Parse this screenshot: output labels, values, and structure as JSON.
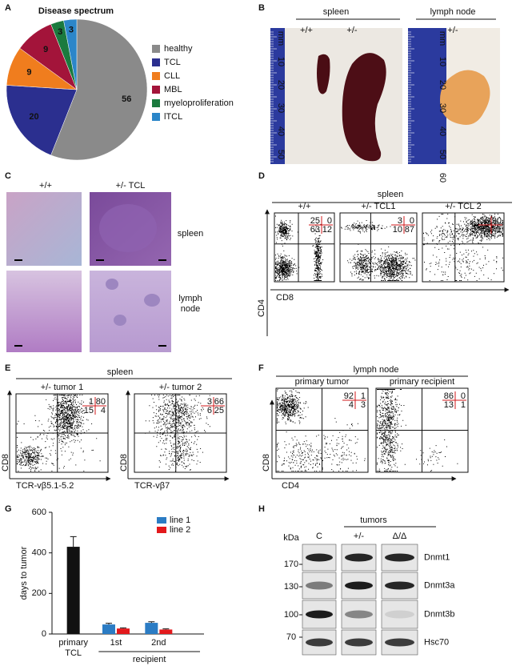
{
  "panel_labels": [
    "A",
    "B",
    "C",
    "D",
    "E",
    "F",
    "G",
    "H"
  ],
  "chart_data": [
    {
      "type": "pie",
      "title": "Disease spectrum",
      "categories": [
        "healthy",
        "TCL",
        "CLL",
        "MBL",
        "myeloproliferation",
        "lTCL"
      ],
      "values": [
        56,
        20,
        9,
        9,
        3,
        3
      ],
      "colors": [
        "#8a8a8a",
        "#2b2f8f",
        "#f07d1e",
        "#a3143a",
        "#1b7a3e",
        "#2b86c9"
      ]
    },
    {
      "type": "bar",
      "ylabel": "days to tumor",
      "categories": [
        "primary TCL",
        "1st",
        "2nd"
      ],
      "group_label": "recipient",
      "series": [
        {
          "color": "#111111",
          "values": [
            430,
            null,
            null
          ],
          "errors": [
            50,
            null,
            null
          ]
        },
        {
          "name": "line 1",
          "color": "#2b7cc4",
          "values": [
            null,
            47,
            55
          ],
          "errors": [
            null,
            6,
            5
          ]
        },
        {
          "name": "line 2",
          "color": "#e3191c",
          "values": [
            null,
            27,
            22
          ],
          "errors": [
            null,
            3,
            3
          ]
        }
      ],
      "ylim": [
        0,
        600
      ],
      "yticks": [
        0,
        200,
        400,
        600
      ]
    }
  ],
  "panel_b": {
    "spleen": {
      "title": "spleen",
      "genotypes": [
        "+/+",
        "+/-"
      ],
      "ruler": [
        "mm",
        10,
        20,
        30,
        40,
        50
      ]
    },
    "lymph_node": {
      "title": "lymph node",
      "genotypes": [
        "+/-"
      ],
      "ruler": [
        "mm",
        10,
        20,
        30,
        40,
        50,
        60
      ]
    }
  },
  "panel_c": {
    "columns": [
      "+/+",
      "+/- TCL"
    ],
    "rows": [
      "spleen",
      "lymph node"
    ]
  },
  "panel_d": {
    "title": "spleen",
    "x_label": "CD8",
    "y_label": "CD4",
    "plots": [
      {
        "label": "+/+",
        "quadrants": [
          25,
          0,
          63,
          12
        ]
      },
      {
        "label": "+/- TCL1",
        "quadrants": [
          3,
          0,
          10,
          87
        ]
      },
      {
        "label": "+/- TCL 2",
        "quadrants": [
          6,
          90,
          3,
          1
        ]
      }
    ]
  },
  "panel_e": {
    "title": "spleen",
    "y_label": "CD8",
    "plots": [
      {
        "label": "+/- tumor 1",
        "x_label": "TCR-vβ5.1-5.2",
        "quadrants": [
          1,
          80,
          15,
          4
        ]
      },
      {
        "label": "+/- tumor 2",
        "x_label": "TCR-vβ7",
        "quadrants": [
          3,
          66,
          6,
          25
        ]
      }
    ]
  },
  "panel_f": {
    "title": "lymph node",
    "x_label": "CD4",
    "y_label": "CD8",
    "plots": [
      {
        "label": "primary tumor",
        "quadrants": [
          92,
          1,
          4,
          3
        ]
      },
      {
        "label": "primary recipient",
        "quadrants": [
          86,
          0,
          13,
          1
        ]
      }
    ]
  },
  "panel_h": {
    "group": "tumors",
    "kda_label": "kDa",
    "lanes": [
      "C",
      "+/-",
      "Δ/Δ"
    ],
    "markers": [
      170,
      130,
      100,
      70
    ],
    "proteins": [
      "Dnmt1",
      "Dnmt3a",
      "Dnmt3b",
      "Hsc70"
    ]
  }
}
